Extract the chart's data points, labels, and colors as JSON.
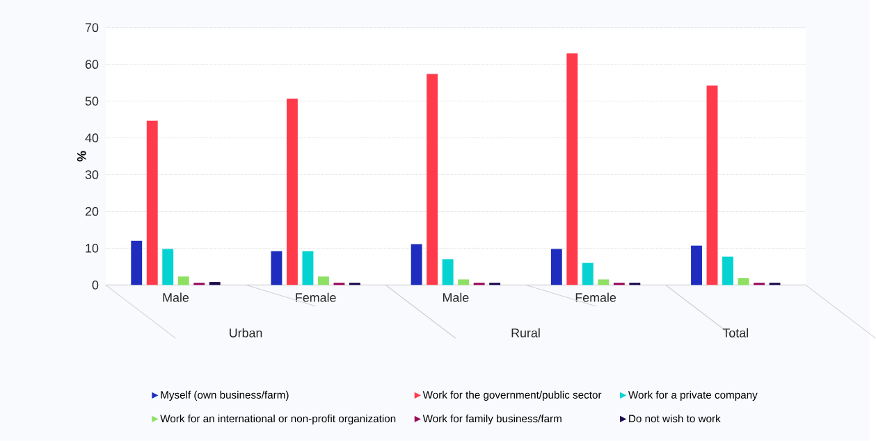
{
  "chart_data": {
    "type": "bar",
    "ylabel": "%",
    "categories": [
      "Male",
      "Female",
      "Male",
      "Female",
      null
    ],
    "annotations": [
      "Urban",
      "Rural",
      "Total"
    ],
    "series": [
      {
        "name": "Myself (own business/farm)",
        "color": "#1f2dbf",
        "values": [
          12.0,
          9.2,
          11.1,
          9.8,
          10.7
        ]
      },
      {
        "name": "Work for the government/public sector",
        "color": "#ff3b4b",
        "values": [
          44.7,
          50.7,
          57.4,
          63.0,
          54.2
        ]
      },
      {
        "name": "Work for a private company",
        "color": "#05d3d2",
        "values": [
          9.8,
          9.2,
          7.0,
          6.0,
          7.7
        ]
      },
      {
        "name": "Work for an international or non-profit organization",
        "color": "#8ee063",
        "values": [
          2.3,
          2.3,
          1.5,
          1.5,
          1.9
        ]
      },
      {
        "name": "Work for family business/farm",
        "color": "#9b0b5b",
        "values": [
          0.6,
          0.6,
          0.6,
          0.6,
          0.6
        ]
      },
      {
        "name": "Do not wish to work",
        "color": "#1e0a4f",
        "values": [
          0.8,
          0.6,
          0.6,
          0.6,
          0.6
        ]
      }
    ],
    "ylim": [
      0,
      70
    ],
    "yticks": [
      0,
      10,
      20,
      30,
      40,
      50,
      60,
      70
    ],
    "grid": "y",
    "legend": "bottom"
  }
}
